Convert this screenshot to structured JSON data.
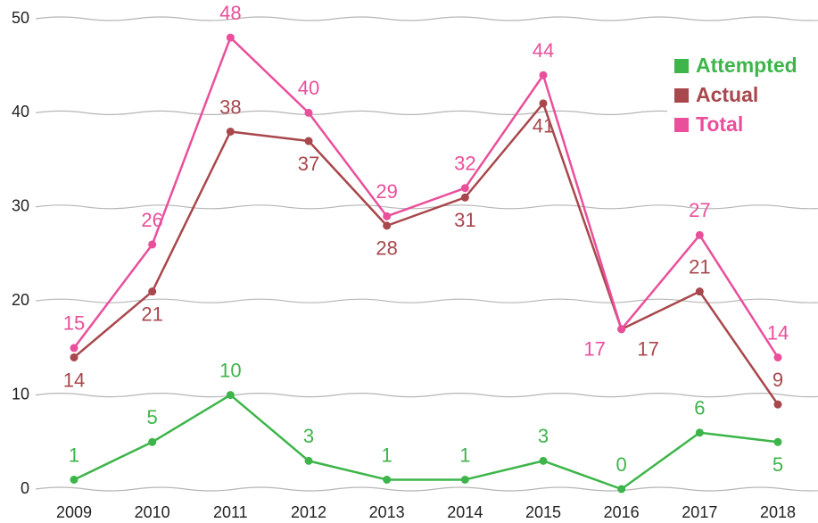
{
  "chart_data": {
    "type": "line",
    "categories": [
      "2009",
      "2010",
      "2011",
      "2012",
      "2013",
      "2014",
      "2015",
      "2016",
      "2017",
      "2018"
    ],
    "series": [
      {
        "name": "Attempted",
        "color": "#3db54a",
        "values": [
          1,
          5,
          10,
          3,
          1,
          1,
          3,
          0,
          6,
          5
        ]
      },
      {
        "name": "Actual",
        "color": "#a8474c",
        "values": [
          14,
          21,
          38,
          37,
          28,
          31,
          41,
          17,
          21,
          9
        ]
      },
      {
        "name": "Total",
        "color": "#ea4f9b",
        "values": [
          15,
          26,
          48,
          40,
          29,
          32,
          44,
          17,
          27,
          14
        ]
      }
    ],
    "ylim": [
      0,
      50
    ],
    "yticks": [
      0,
      10,
      20,
      30,
      40,
      50
    ],
    "grid": true,
    "legend": "top-right"
  }
}
